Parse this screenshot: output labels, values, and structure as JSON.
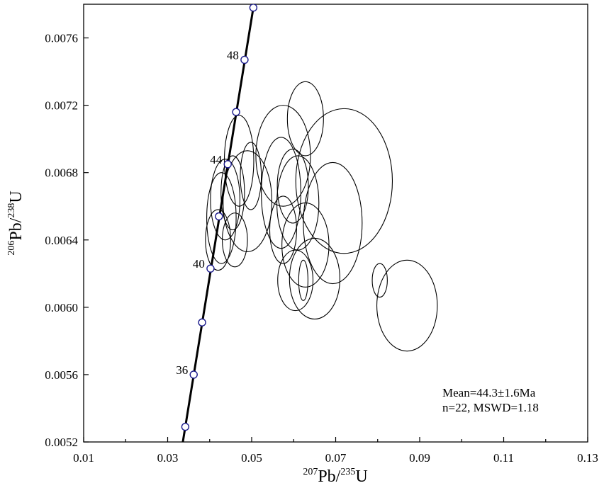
{
  "chart_data": {
    "type": "scatter",
    "title": "",
    "xlabel": {
      "sup1": "207",
      "base1": "Pb/",
      "sup2": "235",
      "base2": "U"
    },
    "ylabel": {
      "sup1": "206",
      "base1": "Pb/",
      "sup2": "238",
      "base2": "U"
    },
    "xlim": [
      0.01,
      0.13
    ],
    "ylim": [
      0.0052,
      0.0078
    ],
    "x_ticks": [
      0.01,
      0.03,
      0.05,
      0.07,
      0.09,
      0.11,
      0.13
    ],
    "x_tick_labels": [
      "0.01",
      "0.03",
      "0.05",
      "0.07",
      "0.09",
      "0.11",
      "0.13"
    ],
    "y_ticks": [
      0.0052,
      0.0056,
      0.006,
      0.0064,
      0.0068,
      0.0072,
      0.0076
    ],
    "y_tick_labels": [
      "0.0052",
      "0.0056",
      "0.0060",
      "0.0064",
      "0.0068",
      "0.0072",
      "0.0076"
    ],
    "grid": false,
    "concordia": {
      "points": [
        {
          "x": 0.0342,
          "y": 0.00529
        },
        {
          "x": 0.0362,
          "y": 0.0056
        },
        {
          "x": 0.0382,
          "y": 0.00591
        },
        {
          "x": 0.0402,
          "y": 0.00623
        },
        {
          "x": 0.0422,
          "y": 0.00654
        },
        {
          "x": 0.0443,
          "y": 0.00685
        },
        {
          "x": 0.0463,
          "y": 0.00716
        },
        {
          "x": 0.0483,
          "y": 0.00747
        },
        {
          "x": 0.0504,
          "y": 0.00778
        }
      ],
      "age_labels": [
        {
          "text": "36",
          "x": 0.0362,
          "y": 0.0056
        },
        {
          "text": "40",
          "x": 0.0402,
          "y": 0.00623
        },
        {
          "text": "44",
          "x": 0.0443,
          "y": 0.00685
        },
        {
          "text": "48",
          "x": 0.0483,
          "y": 0.00747
        }
      ]
    },
    "ellipses": [
      {
        "cx": 0.0628,
        "cy": 0.00712,
        "rx": 0.0043,
        "ry": 0.00022
      },
      {
        "cx": 0.0575,
        "cy": 0.0069,
        "rx": 0.0065,
        "ry": 0.0003
      },
      {
        "cx": 0.072,
        "cy": 0.00675,
        "rx": 0.0115,
        "ry": 0.00043
      },
      {
        "cx": 0.047,
        "cy": 0.00687,
        "rx": 0.0035,
        "ry": 0.00027
      },
      {
        "cx": 0.057,
        "cy": 0.00668,
        "rx": 0.0047,
        "ry": 0.00033
      },
      {
        "cx": 0.049,
        "cy": 0.00663,
        "rx": 0.0058,
        "ry": 0.0003
      },
      {
        "cx": 0.0437,
        "cy": 0.00664,
        "rx": 0.0035,
        "ry": 0.00024
      },
      {
        "cx": 0.0455,
        "cy": 0.00668,
        "rx": 0.0028,
        "ry": 0.00022
      },
      {
        "cx": 0.0498,
        "cy": 0.00678,
        "rx": 0.0025,
        "ry": 0.0002
      },
      {
        "cx": 0.0598,
        "cy": 0.00672,
        "rx": 0.0037,
        "ry": 0.00022
      },
      {
        "cx": 0.061,
        "cy": 0.00662,
        "rx": 0.005,
        "ry": 0.00028
      },
      {
        "cx": 0.0693,
        "cy": 0.0065,
        "rx": 0.007,
        "ry": 0.00036
      },
      {
        "cx": 0.0628,
        "cy": 0.00637,
        "rx": 0.0056,
        "ry": 0.00025
      },
      {
        "cx": 0.0604,
        "cy": 0.00616,
        "rx": 0.0042,
        "ry": 0.00018
      },
      {
        "cx": 0.0623,
        "cy": 0.00616,
        "rx": 0.0011,
        "ry": 0.00012
      },
      {
        "cx": 0.065,
        "cy": 0.00617,
        "rx": 0.006,
        "ry": 0.00024
      },
      {
        "cx": 0.0805,
        "cy": 0.00616,
        "rx": 0.0018,
        "ry": 0.0001
      },
      {
        "cx": 0.087,
        "cy": 0.00601,
        "rx": 0.0072,
        "ry": 0.00027
      },
      {
        "cx": 0.0428,
        "cy": 0.00653,
        "rx": 0.0035,
        "ry": 0.00027
      },
      {
        "cx": 0.042,
        "cy": 0.0064,
        "rx": 0.003,
        "ry": 0.00018
      },
      {
        "cx": 0.046,
        "cy": 0.0064,
        "rx": 0.003,
        "ry": 0.00016
      },
      {
        "cx": 0.0575,
        "cy": 0.00646,
        "rx": 0.0032,
        "ry": 0.0002
      }
    ],
    "annotations": [
      "Mean=44.3±1.6Ma",
      "n=22,  MSWD=1.18"
    ]
  }
}
